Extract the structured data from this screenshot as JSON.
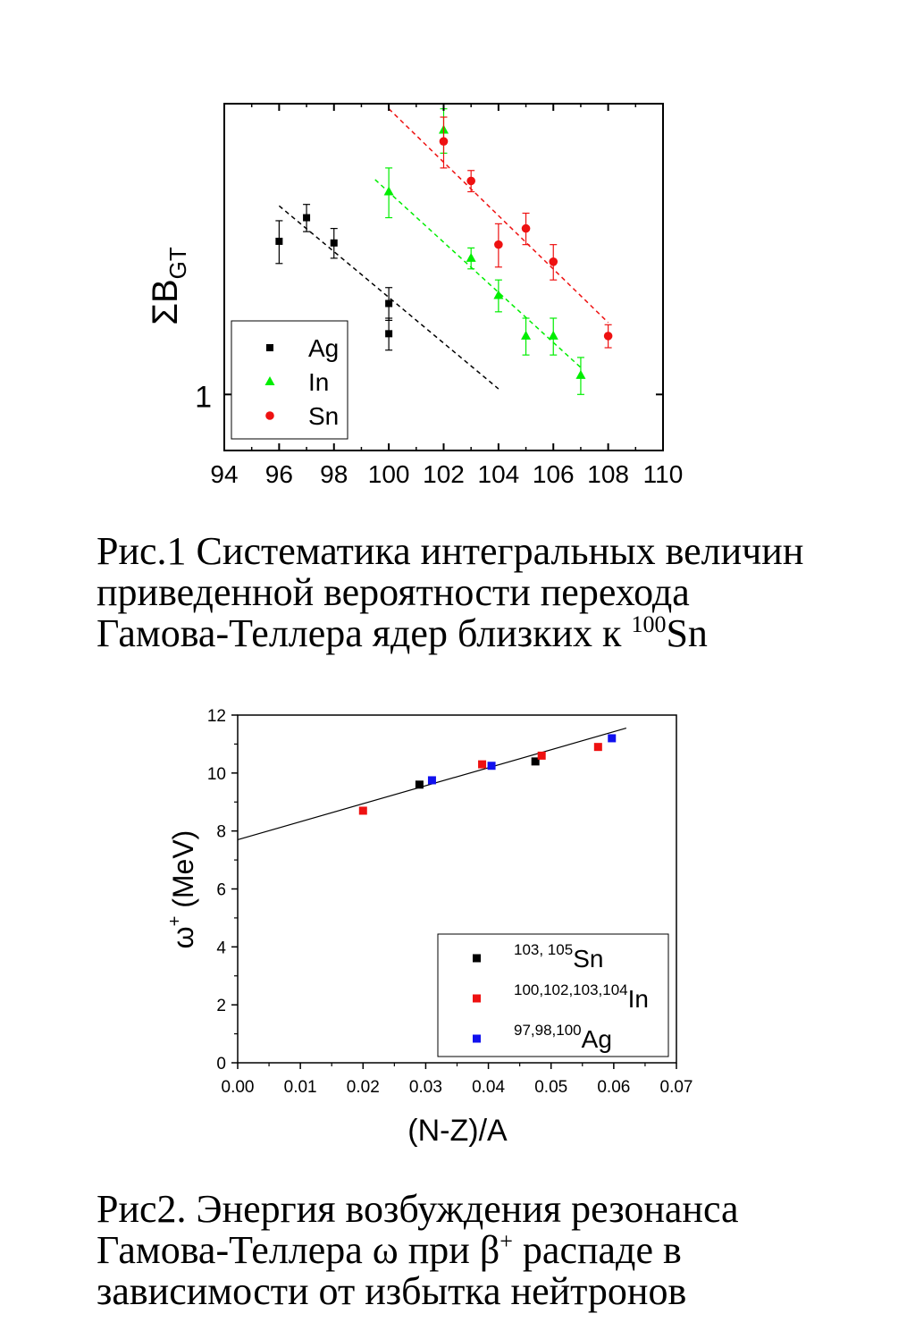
{
  "chart_data": [
    {
      "type": "scatter",
      "scale_y": "log",
      "ylabel": "ΣB",
      "ylabel_sub": "GT",
      "xlim": [
        94,
        110
      ],
      "ylim": [
        0.82,
        2.8
      ],
      "x_ticks": [
        "94",
        "96",
        "98",
        "100",
        "102",
        "104",
        "106",
        "108",
        "110"
      ],
      "y_tick_value": 1,
      "y_tick_label": "1",
      "legend_position": "bottom-left",
      "series": [
        {
          "name": "Ag",
          "color": "#000000",
          "marker": "square",
          "x": [
            96,
            97,
            98,
            100,
            100
          ],
          "y": [
            1.72,
            1.87,
            1.71,
            1.38,
            1.24
          ],
          "err": [
            0.13,
            0.09,
            0.09,
            0.08,
            0.07
          ],
          "fit": {
            "x": [
              96,
              104
            ],
            "y": [
              1.95,
              1.02
            ]
          }
        },
        {
          "name": "In",
          "color": "#00ee00",
          "marker": "triangle",
          "x": [
            100,
            102,
            103,
            104,
            105,
            106,
            107
          ],
          "y": [
            2.05,
            2.55,
            1.62,
            1.42,
            1.23,
            1.23,
            1.07
          ],
          "err": [
            0.18,
            0.2,
            0.06,
            0.08,
            0.08,
            0.08,
            0.07
          ],
          "fit": {
            "x": [
              99.5,
              107
            ],
            "y": [
              2.14,
              1.1
            ]
          }
        },
        {
          "name": "Sn",
          "color": "#ee1111",
          "marker": "circle",
          "x": [
            102,
            103,
            104,
            105,
            106,
            108
          ],
          "y": [
            2.45,
            2.13,
            1.7,
            1.8,
            1.6,
            1.23
          ],
          "err": [
            0.22,
            0.08,
            0.13,
            0.1,
            0.1,
            0.05
          ],
          "fit": {
            "x": [
              100,
              108
            ],
            "y": [
              2.75,
              1.29
            ]
          }
        }
      ]
    },
    {
      "type": "scatter",
      "xlabel": "(N-Z)/A",
      "ylabel": "ω",
      "ylabel_sup": "+",
      "ylabel_unit": "(MeV)",
      "xlim": [
        0,
        0.07
      ],
      "ylim": [
        0,
        12
      ],
      "x_ticks": [
        "0.00",
        "0.01",
        "0.02",
        "0.03",
        "0.04",
        "0.05",
        "0.06",
        "0.07"
      ],
      "y_ticks": [
        "0",
        "2",
        "4",
        "6",
        "8",
        "10",
        "12"
      ],
      "legend_position": "bottom-right",
      "fit": {
        "x": [
          0,
          0.062
        ],
        "y": [
          7.7,
          11.55
        ]
      },
      "series": [
        {
          "sup": "103, 105",
          "name": "Sn",
          "color": "#000000",
          "x": [
            0.029,
            0.0475
          ],
          "y": [
            9.6,
            10.4
          ]
        },
        {
          "sup": "100,102,103,104",
          "name": "In",
          "color": "#ee1111",
          "x": [
            0.02,
            0.039,
            0.0485,
            0.0575
          ],
          "y": [
            8.7,
            10.3,
            10.6,
            10.9
          ]
        },
        {
          "sup": "97,98,100",
          "name": "Ag",
          "color": "#1111ee",
          "x": [
            0.031,
            0.0405,
            0.0597
          ],
          "y": [
            9.75,
            10.25,
            11.2
          ]
        }
      ]
    }
  ],
  "captions": {
    "fig1": {
      "line1": "Рис.1 Систематика интегральных величин",
      "line2": "приведенной вероятности перехода",
      "line3_prefix": "Гамова-Теллера ядер близких к ",
      "line3_sup": "100",
      "line3_suffix": "Sn"
    },
    "fig2": {
      "line1": "Рис2. Энергия возбуждения  резонанса",
      "line2_prefix": "Гамова-Теллера  ω при β",
      "line2_sup": "+",
      "line2_suffix": " распаде в",
      "line3": "зависимости от избытка нейтронов"
    }
  }
}
